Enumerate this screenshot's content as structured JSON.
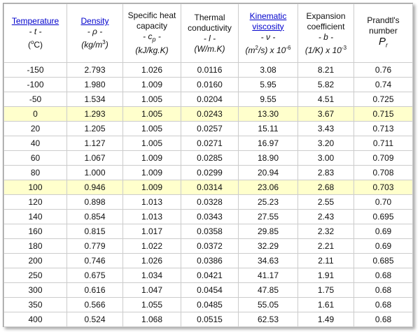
{
  "table": {
    "header": [
      [
        [
          {
            "text": "Temperature",
            "style": [
              "link"
            ]
          }
        ],
        [
          {
            "text": "- t -",
            "style": [
              "italic"
            ]
          }
        ],
        [
          {
            "text": "(",
            "style": []
          },
          {
            "text": "o",
            "style": [
              "sup"
            ]
          },
          {
            "text": "C)",
            "style": []
          }
        ]
      ],
      [
        [
          {
            "text": "Density",
            "style": [
              "link"
            ]
          }
        ],
        [
          {
            "text": "- ρ -",
            "style": [
              "italic"
            ]
          }
        ],
        [
          {
            "text": "(kg/m",
            "style": [
              "italic"
            ]
          },
          {
            "text": "3",
            "style": [
              "sup"
            ]
          },
          {
            "text": ")",
            "style": [
              "italic"
            ]
          }
        ]
      ],
      [
        [
          {
            "text": "Specific heat",
            "style": []
          }
        ],
        [
          {
            "text": "capacity",
            "style": []
          }
        ],
        [
          {
            "text": "- c",
            "style": [
              "italic"
            ]
          },
          {
            "text": "p",
            "style": [
              "sub",
              "italic"
            ]
          },
          {
            "text": " -",
            "style": [
              "italic"
            ]
          }
        ],
        [
          {
            "text": "(kJ/kg.K)",
            "style": [
              "italic"
            ]
          }
        ]
      ],
      [
        [
          {
            "text": "Thermal",
            "style": []
          }
        ],
        [
          {
            "text": "conductivity",
            "style": []
          }
        ],
        [
          {
            "text": "- l -",
            "style": [
              "italic"
            ]
          }
        ],
        [
          {
            "text": "(W/m.K)",
            "style": [
              "italic"
            ]
          }
        ]
      ],
      [
        [
          {
            "text": "Kinematic",
            "style": [
              "link"
            ]
          }
        ],
        [
          {
            "text": "viscosity",
            "style": [
              "link"
            ]
          }
        ],
        [
          {
            "text": "- ν -",
            "style": [
              "italic"
            ]
          }
        ],
        [
          {
            "text": "(m",
            "style": [
              "italic"
            ]
          },
          {
            "text": "2",
            "style": [
              "sup"
            ]
          },
          {
            "text": "/s) x 10",
            "style": [
              "italic"
            ]
          },
          {
            "text": "-6",
            "style": [
              "sup"
            ]
          }
        ]
      ],
      [
        [
          {
            "text": "Expansion",
            "style": []
          }
        ],
        [
          {
            "text": "coefficient",
            "style": []
          }
        ],
        [
          {
            "text": "- b -",
            "style": [
              "italic"
            ]
          }
        ],
        [
          {
            "text": "(1/K) x 10",
            "style": [
              "italic"
            ]
          },
          {
            "text": "-3",
            "style": [
              "sup"
            ]
          }
        ]
      ],
      [
        [
          {
            "text": "Prandtl's",
            "style": []
          }
        ],
        [
          {
            "text": "number",
            "style": []
          }
        ],
        [
          {
            "text": "P",
            "style": [
              "big",
              "italic"
            ]
          },
          {
            "text": "r",
            "style": [
              "sub",
              "italic"
            ]
          }
        ]
      ]
    ],
    "rows": [
      {
        "cells": [
          "-150",
          "2.793",
          "1.026",
          "0.0116",
          "3.08",
          "8.21",
          "0.76"
        ]
      },
      {
        "cells": [
          "-100",
          "1.980",
          "1.009",
          "0.0160",
          "5.95",
          "5.82",
          "0.74"
        ]
      },
      {
        "cells": [
          "-50",
          "1.534",
          "1.005",
          "0.0204",
          "9.55",
          "4.51",
          "0.725"
        ]
      },
      {
        "cells": [
          "0",
          "1.293",
          "1.005",
          "0.0243",
          "13.30",
          "3.67",
          "0.715"
        ],
        "highlight": true
      },
      {
        "cells": [
          "20",
          "1.205",
          "1.005",
          "0.0257",
          "15.11",
          "3.43",
          "0.713"
        ]
      },
      {
        "cells": [
          "40",
          "1.127",
          "1.005",
          "0.0271",
          "16.97",
          "3.20",
          "0.711"
        ]
      },
      {
        "cells": [
          "60",
          "1.067",
          "1.009",
          "0.0285",
          "18.90",
          "3.00",
          "0.709"
        ]
      },
      {
        "cells": [
          "80",
          "1.000",
          "1.009",
          "0.0299",
          "20.94",
          "2.83",
          "0.708"
        ]
      },
      {
        "cells": [
          "100",
          "0.946",
          "1.009",
          "0.0314",
          "23.06",
          "2.68",
          "0.703"
        ],
        "highlight": true
      },
      {
        "cells": [
          "120",
          "0.898",
          "1.013",
          "0.0328",
          "25.23",
          "2.55",
          "0.70"
        ]
      },
      {
        "cells": [
          "140",
          "0.854",
          "1.013",
          "0.0343",
          "27.55",
          "2.43",
          "0.695"
        ]
      },
      {
        "cells": [
          "160",
          "0.815",
          "1.017",
          "0.0358",
          "29.85",
          "2.32",
          "0.69"
        ]
      },
      {
        "cells": [
          "180",
          "0.779",
          "1.022",
          "0.0372",
          "32.29",
          "2.21",
          "0.69"
        ]
      },
      {
        "cells": [
          "200",
          "0.746",
          "1.026",
          "0.0386",
          "34.63",
          "2.11",
          "0.685"
        ]
      },
      {
        "cells": [
          "250",
          "0.675",
          "1.034",
          "0.0421",
          "41.17",
          "1.91",
          "0.68"
        ]
      },
      {
        "cells": [
          "300",
          "0.616",
          "1.047",
          "0.0454",
          "47.85",
          "1.75",
          "0.68"
        ]
      },
      {
        "cells": [
          "350",
          "0.566",
          "1.055",
          "0.0485",
          "55.05",
          "1.61",
          "0.68"
        ]
      },
      {
        "cells": [
          "400",
          "0.524",
          "1.068",
          "0.0515",
          "62.53",
          "1.49",
          "0.68"
        ]
      }
    ]
  }
}
